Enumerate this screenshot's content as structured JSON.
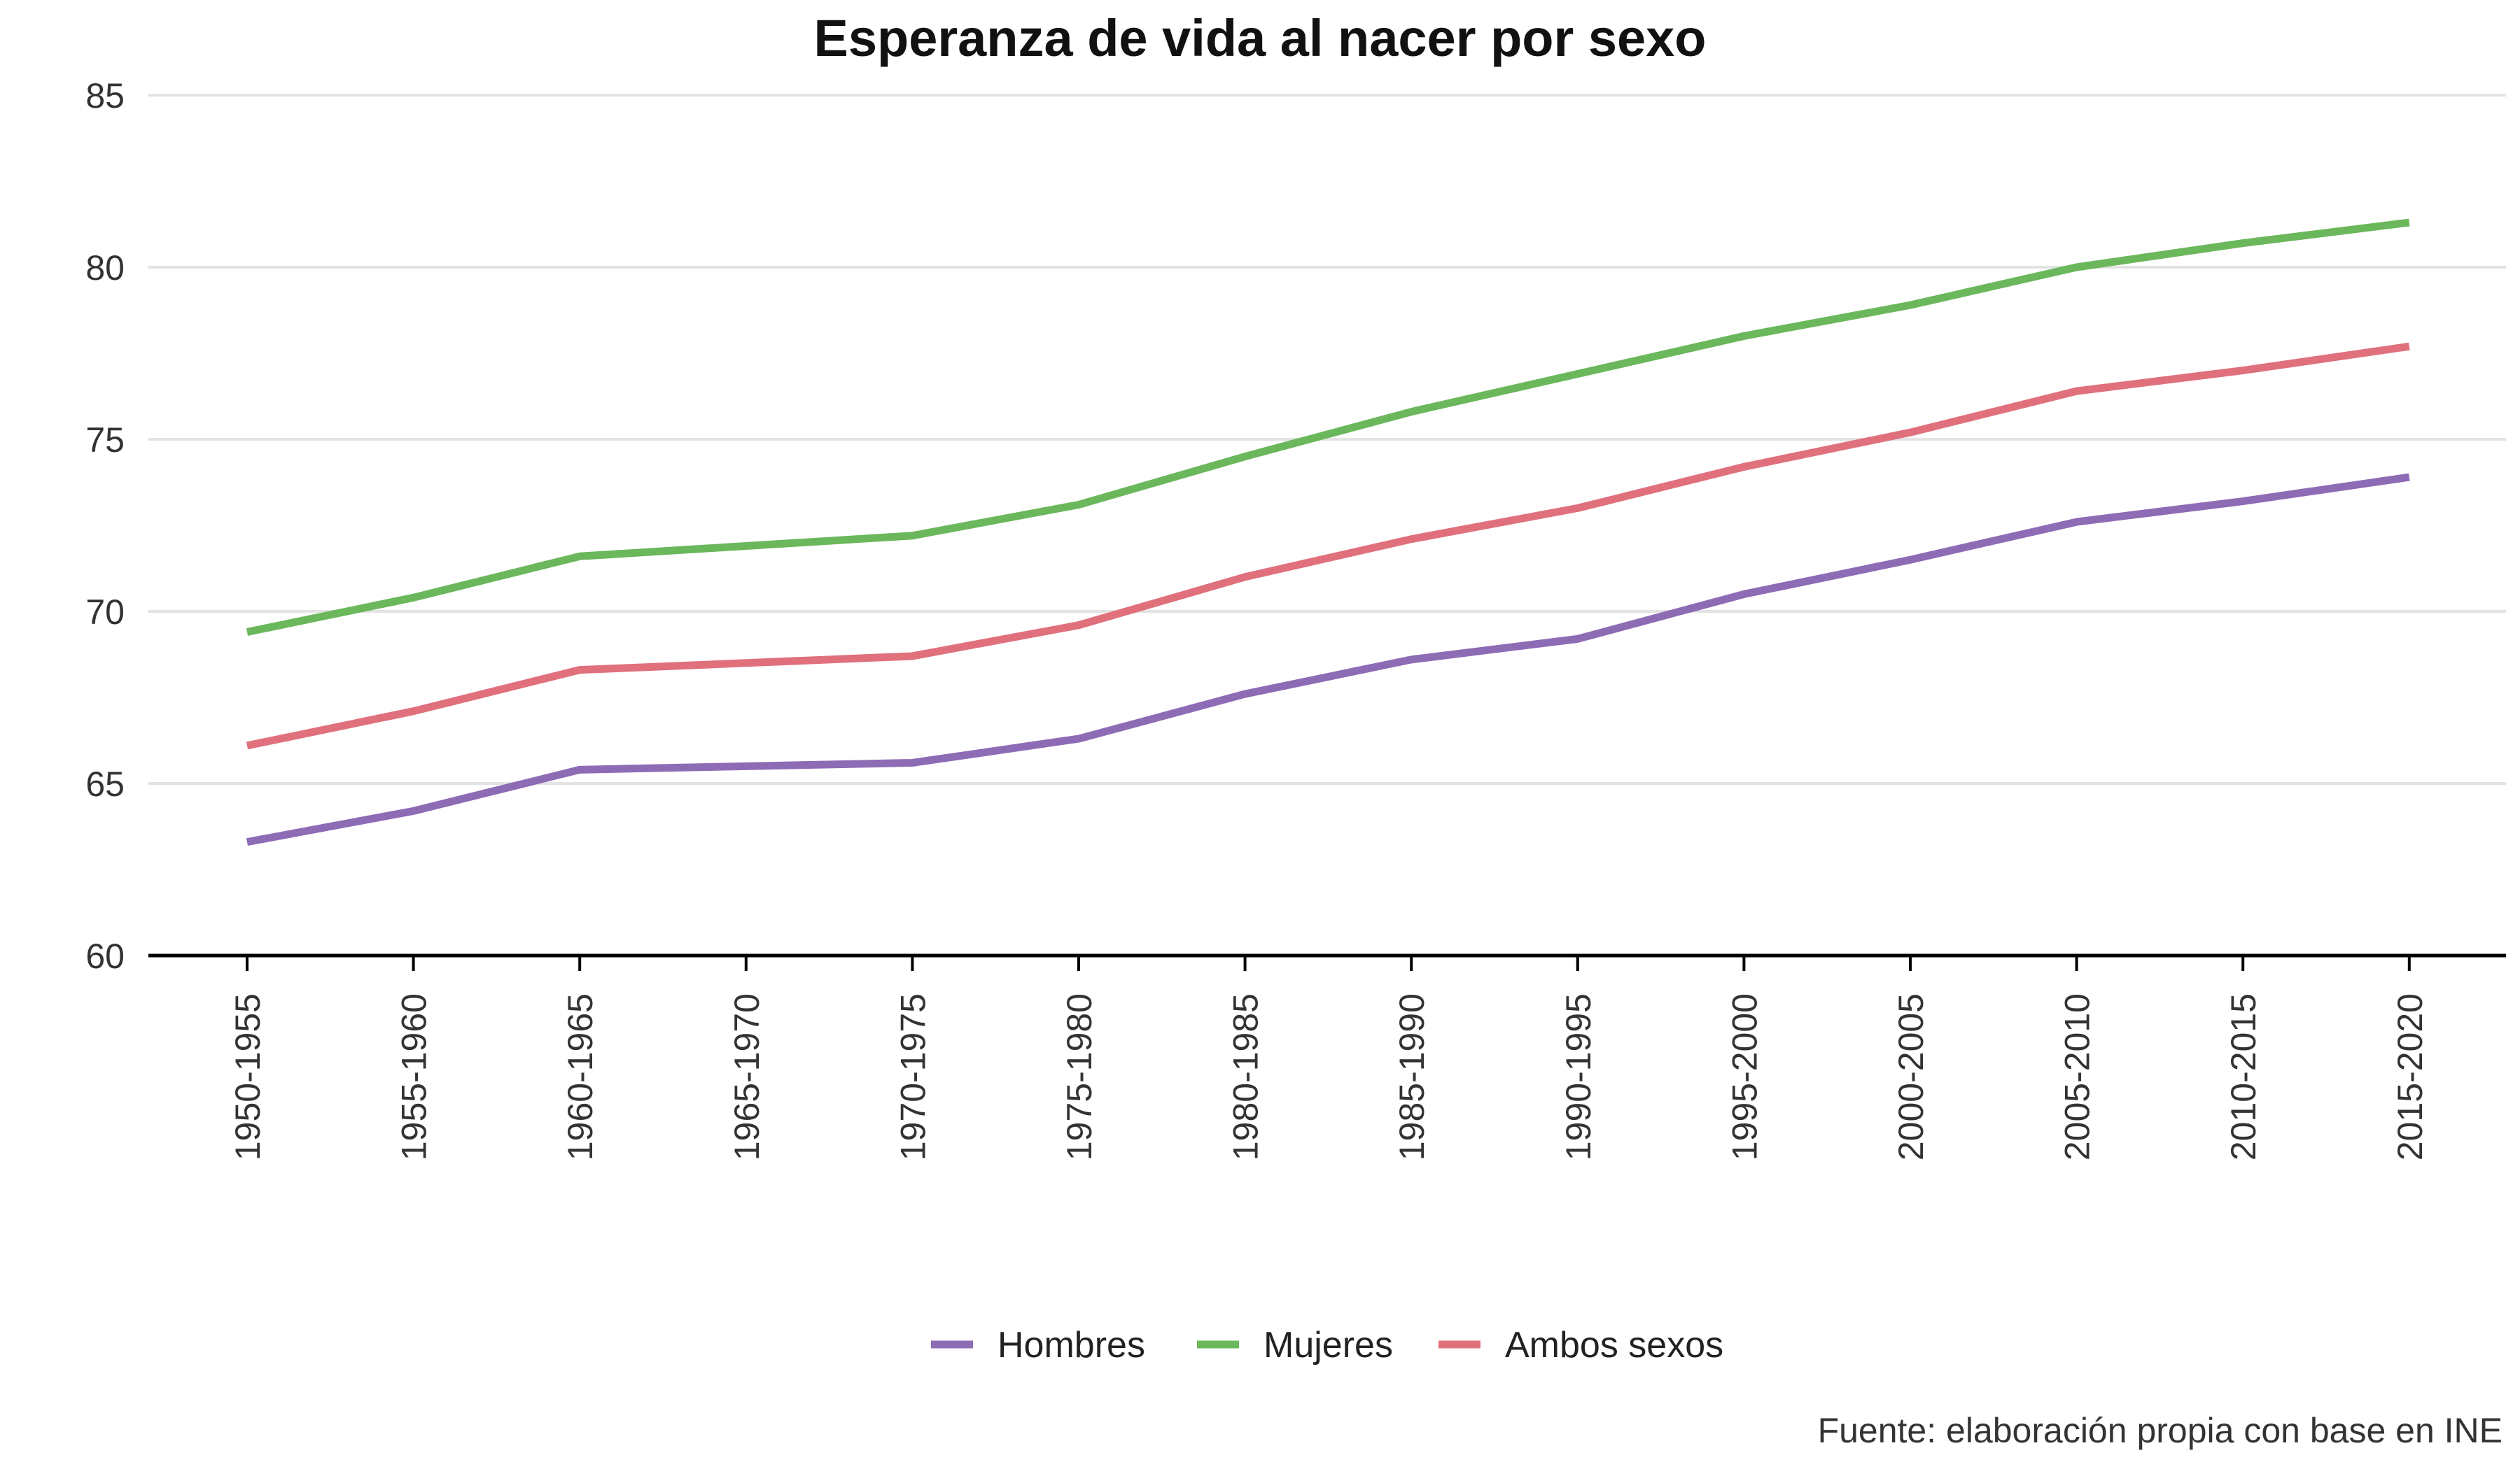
{
  "chart_data": {
    "type": "line",
    "title": "Esperanza de vida al nacer por sexo",
    "xlabel": "",
    "ylabel": "",
    "categories": [
      "1950-1955",
      "1955-1960",
      "1960-1965",
      "1965-1970",
      "1970-1975",
      "1975-1980",
      "1980-1985",
      "1985-1990",
      "1990-1995",
      "1995-2000",
      "2000-2005",
      "2005-2010",
      "2010-2015",
      "2015-2020"
    ],
    "ylim": [
      60,
      85
    ],
    "yticks": [
      "60",
      "65",
      "70",
      "75",
      "80",
      "85"
    ],
    "grid": true,
    "legend_position": "bottom",
    "series": [
      {
        "name": "Hombres",
        "color": "#8E6BB5",
        "values": [
          63.3,
          64.2,
          65.4,
          65.5,
          65.6,
          66.3,
          67.6,
          68.6,
          69.2,
          70.5,
          71.5,
          72.6,
          73.2,
          73.9
        ]
      },
      {
        "name": "Mujeres",
        "color": "#6BB75C",
        "values": [
          69.4,
          70.4,
          71.6,
          71.9,
          72.2,
          73.1,
          74.5,
          75.8,
          76.9,
          78.0,
          78.9,
          80.0,
          80.7,
          81.3
        ]
      },
      {
        "name": "Ambos sexos",
        "color": "#E0707C",
        "values": [
          66.1,
          67.1,
          68.3,
          68.5,
          68.7,
          69.6,
          71.0,
          72.1,
          73.0,
          74.2,
          75.2,
          76.4,
          77.0,
          77.7
        ]
      }
    ],
    "caption": "Fuente: elaboración propia con base en INE"
  }
}
